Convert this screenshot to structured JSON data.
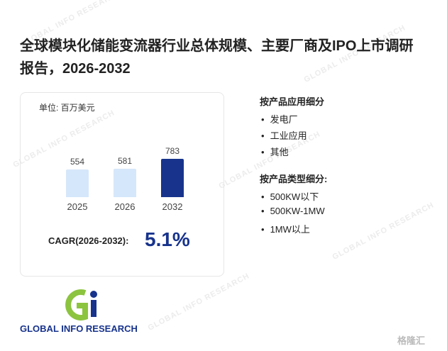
{
  "header": {
    "title": "全球模块化储能变流器行业总体规模、主要厂商及IPO上市调研报告，2026-2032"
  },
  "chart_data": {
    "type": "bar",
    "unit_label": "单位: 百万美元",
    "categories": [
      "2025",
      "2026",
      "2032"
    ],
    "values": [
      554,
      581,
      783
    ],
    "colors": [
      "#d5e7fa",
      "#d5e7fa",
      "#17338c"
    ]
  },
  "cagr": {
    "label": "CAGR(2026-2032):",
    "value": "5.1%"
  },
  "segments": [
    {
      "title": "按产品应用细分",
      "items": [
        "发电厂",
        "工业应用",
        "其他"
      ]
    },
    {
      "title": "按产品类型细分:",
      "items": [
        "500KW以下",
        "500KW-1MW",
        "1MW以上"
      ]
    }
  ],
  "logo": {
    "text": "GLOBAL INFO RESEARCH"
  },
  "watermark": {
    "text": "GLOBAL INFO RESEARCH",
    "brand": "格隆汇"
  }
}
